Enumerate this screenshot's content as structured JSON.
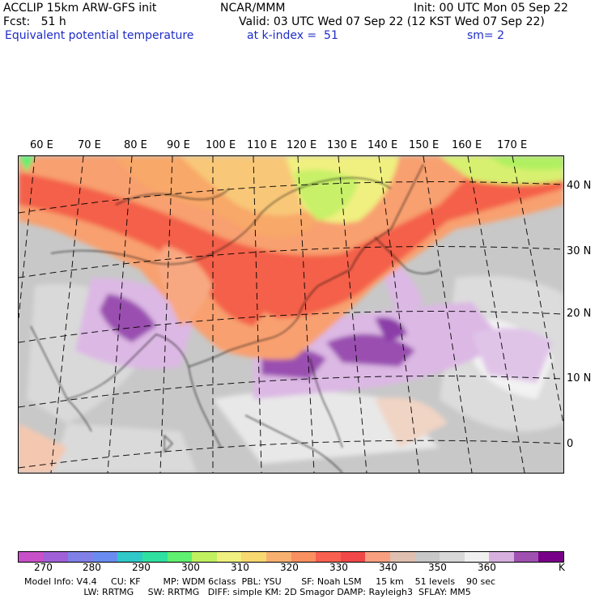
{
  "header": {
    "left1": "ACCLIP 15km ARW-GFS init",
    "left2": "Fcst:   51 h",
    "left3": "Equivalent potential temperature",
    "center1": "NCAR/MMM",
    "init": "Init: 00 UTC Mon 05 Sep 22",
    "valid": "Valid: 03 UTC Wed 07 Sep 22 (12 KST Wed 07 Sep 22)",
    "kindex": "at k-index =  51",
    "sm": "sm= 2"
  },
  "axes": {
    "lon_labels": [
      "60 E",
      "70 E",
      "80 E",
      "90 E",
      "100 E",
      "110 E",
      "120 E",
      "130 E",
      "140 E",
      "150 E",
      "160 E",
      "170 E"
    ],
    "lat_labels": [
      "40 N",
      "30 N",
      "20 N",
      "10 N",
      "0"
    ]
  },
  "colorbar": {
    "colors": [
      "#c850c8",
      "#a060d8",
      "#8080e8",
      "#6a8cf0",
      "#30c8c8",
      "#30e0a0",
      "#60f070",
      "#c0f060",
      "#f0f080",
      "#f8d870",
      "#f8b070",
      "#f89060",
      "#f86050",
      "#f04848",
      "#f8a080",
      "#e0c0b0",
      "#c8c8c8",
      "#d8d8d8",
      "#f0f0f0",
      "#d8b0e0",
      "#a050b0",
      "#780088"
    ],
    "tick_labels": [
      "270",
      "280",
      "290",
      "300",
      "310",
      "320",
      "330",
      "340",
      "350",
      "360"
    ],
    "unit": "K"
  },
  "footer": {
    "line1": "Model Info: V4.4     CU: KF        MP: WDM 6class  PBL: YSU       SF: Noah LSM     15 km    51 levels    90 sec",
    "line2": "                     LW: RRTMG     SW: RRTMG   DIFF: simple KM: 2D Smagor DAMP: Rayleigh3  SFLAY: MM5"
  }
}
